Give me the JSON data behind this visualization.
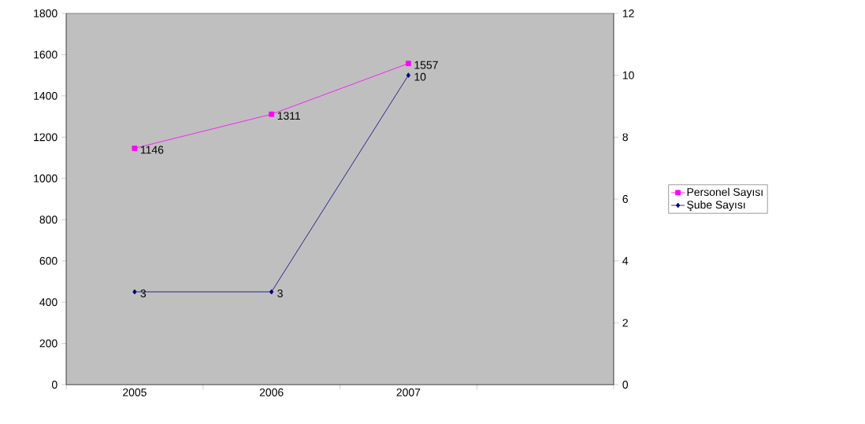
{
  "chart_data": {
    "type": "line",
    "categories": [
      "2005",
      "2006",
      "2007",
      null
    ],
    "series": [
      {
        "name": "Personel Sayısı",
        "color": "#ff00ff",
        "marker": "square",
        "values": [
          1146,
          1311,
          1557,
          null
        ]
      },
      {
        "name": "Şube Sayısı",
        "color": "#000080",
        "marker": "diamond",
        "axis": "y2",
        "values": [
          3,
          3,
          10,
          null
        ]
      }
    ],
    "ylim": [
      0,
      1800
    ],
    "yticks": [
      0,
      200,
      400,
      600,
      800,
      1000,
      1200,
      1400,
      1600,
      1800
    ],
    "y2lim": [
      0,
      12
    ],
    "y2ticks": [
      0,
      2,
      4,
      6,
      8,
      10,
      12
    ],
    "data_labels": true,
    "legend": "right",
    "grid": false
  }
}
